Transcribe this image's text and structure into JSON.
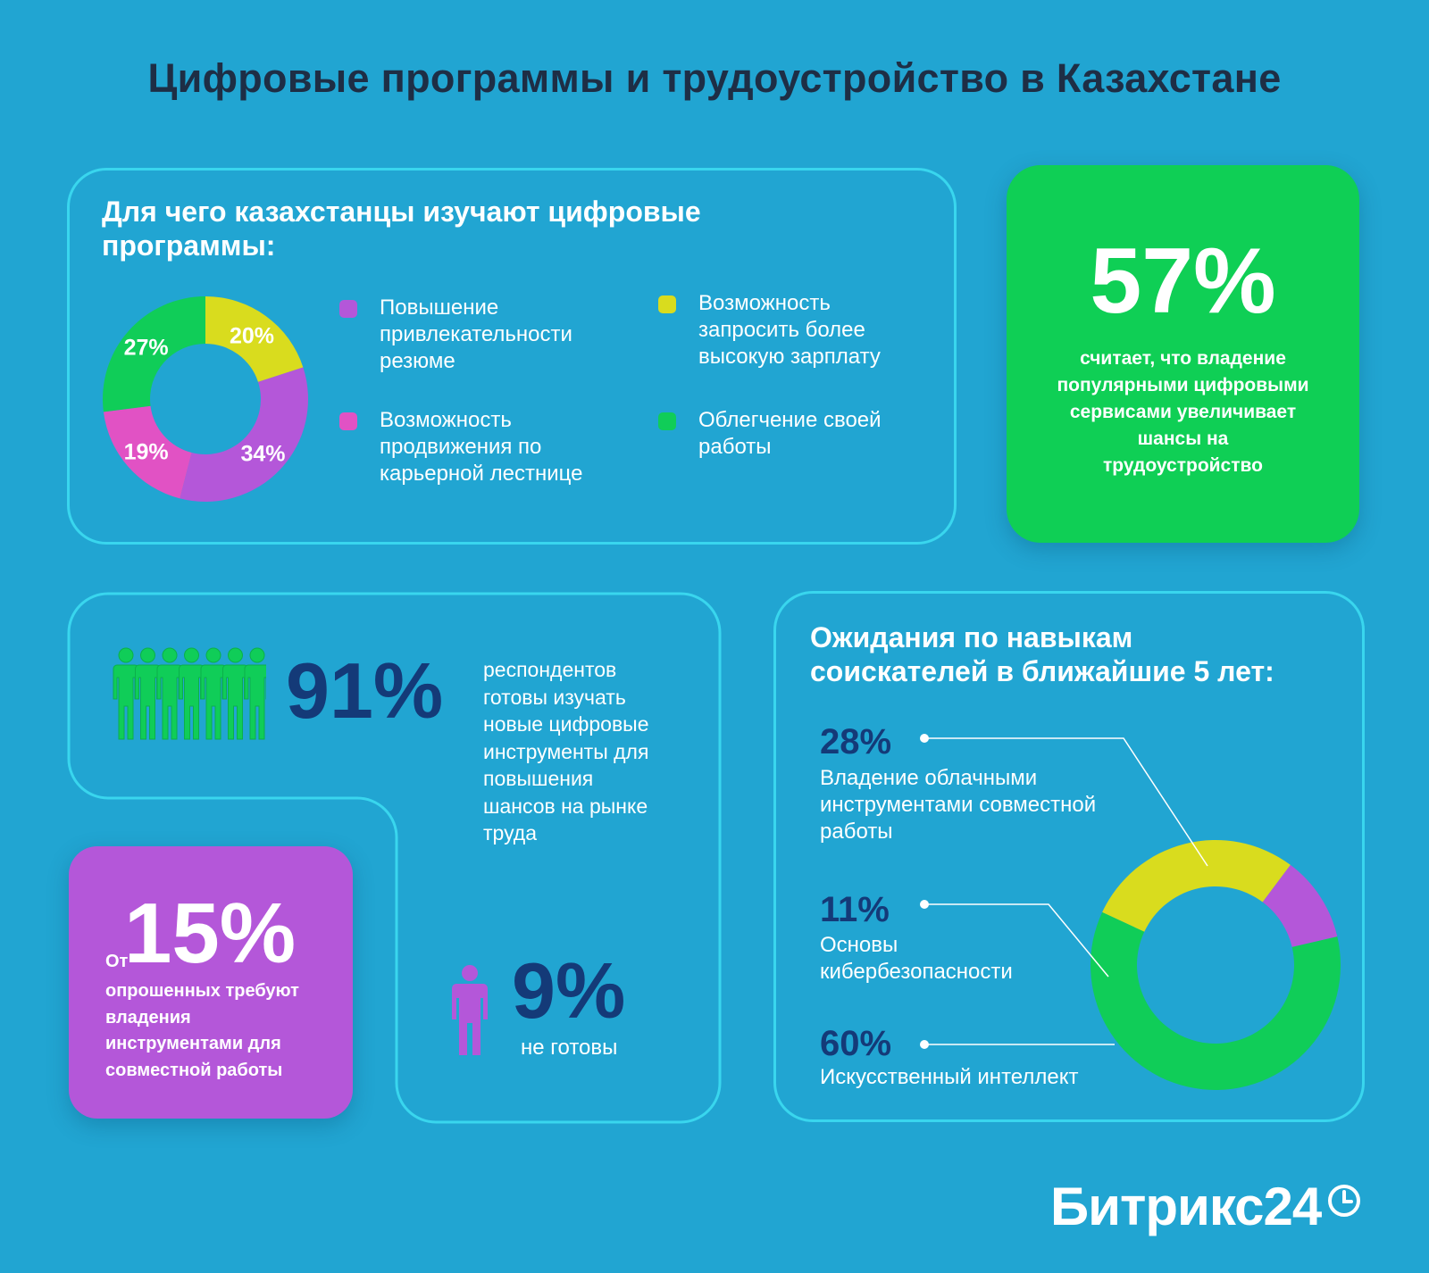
{
  "title": "Цифровые программы и трудоустройство в Казахстане",
  "panel_reasons": {
    "title_line1": "Для чего казахстанцы изучают цифровые",
    "title_line2": "программы:",
    "legend": [
      {
        "label": "Повышение привлекательности резюме",
        "color": "#b457d9"
      },
      {
        "label": "Возможность запросить более высокую зарплату",
        "color": "#d9dc1e"
      },
      {
        "label": "Возможность продвижения по карьерной лестнице",
        "color": "#e152c4"
      },
      {
        "label": "Облегчение своей работы",
        "color": "#10cd58"
      }
    ]
  },
  "card_57": {
    "number": "57%",
    "text": "считает, что владение популярными цифровыми сервисами увеличивает шансы на трудоустройство",
    "color": "#0fcf55"
  },
  "panel_ready": {
    "pct": "91%",
    "text": "респондентов готовы изучать новые цифровые инструменты для повышения шансов на рынке труда",
    "not_ready_pct": "9%",
    "not_ready_text": "не готовы",
    "people_icon": "group-of-people-icon",
    "person_icon": "person-icon"
  },
  "card_15": {
    "prefix": "От",
    "number": "15%",
    "text": "опрошенных требуют владения инструментами для совместной работы",
    "color": "#b457d9"
  },
  "panel_skills": {
    "title_line1": "Ожидания по навыкам",
    "title_line2": "соискателей в ближайшие 5 лет:",
    "items": [
      {
        "pct": "28%",
        "label_lines": [
          "Владение облачными",
          "инструментами совместной",
          "работы"
        ]
      },
      {
        "pct": "11%",
        "label_lines": [
          "Основы",
          "кибербезопасности"
        ]
      },
      {
        "pct": "60%",
        "label_lines": [
          "Искусственный интеллект"
        ]
      }
    ]
  },
  "brand": {
    "name": "Битрикс24",
    "icon": "clock-icon"
  },
  "chart_data": [
    {
      "type": "pie",
      "title": "Для чего казахстанцы изучают цифровые программы:",
      "categories": [
        "Возможность запросить более высокую зарплату",
        "Повышение привлекательности резюме",
        "Возможность продвижения по карьерной лестнице",
        "Облегчение своей работы"
      ],
      "values": [
        20,
        34,
        19,
        27
      ],
      "labels": [
        "20%",
        "34%",
        "19%",
        "27%"
      ],
      "colors": [
        "#d9dc1e",
        "#b457d9",
        "#e152c4",
        "#10cd58"
      ],
      "donut": true
    },
    {
      "type": "pie",
      "title": "Ожидания по навыкам соискателей в ближайшие 5 лет:",
      "categories": [
        "Владение облачными инструментами совместной работы",
        "Основы кибербезопасности",
        "Искусственный интеллект"
      ],
      "values": [
        28,
        11,
        60
      ],
      "labels": [
        "28%",
        "11%",
        "60%"
      ],
      "colors": [
        "#d9dc1e",
        "#b457d9",
        "#10cd58"
      ],
      "donut": true
    }
  ]
}
